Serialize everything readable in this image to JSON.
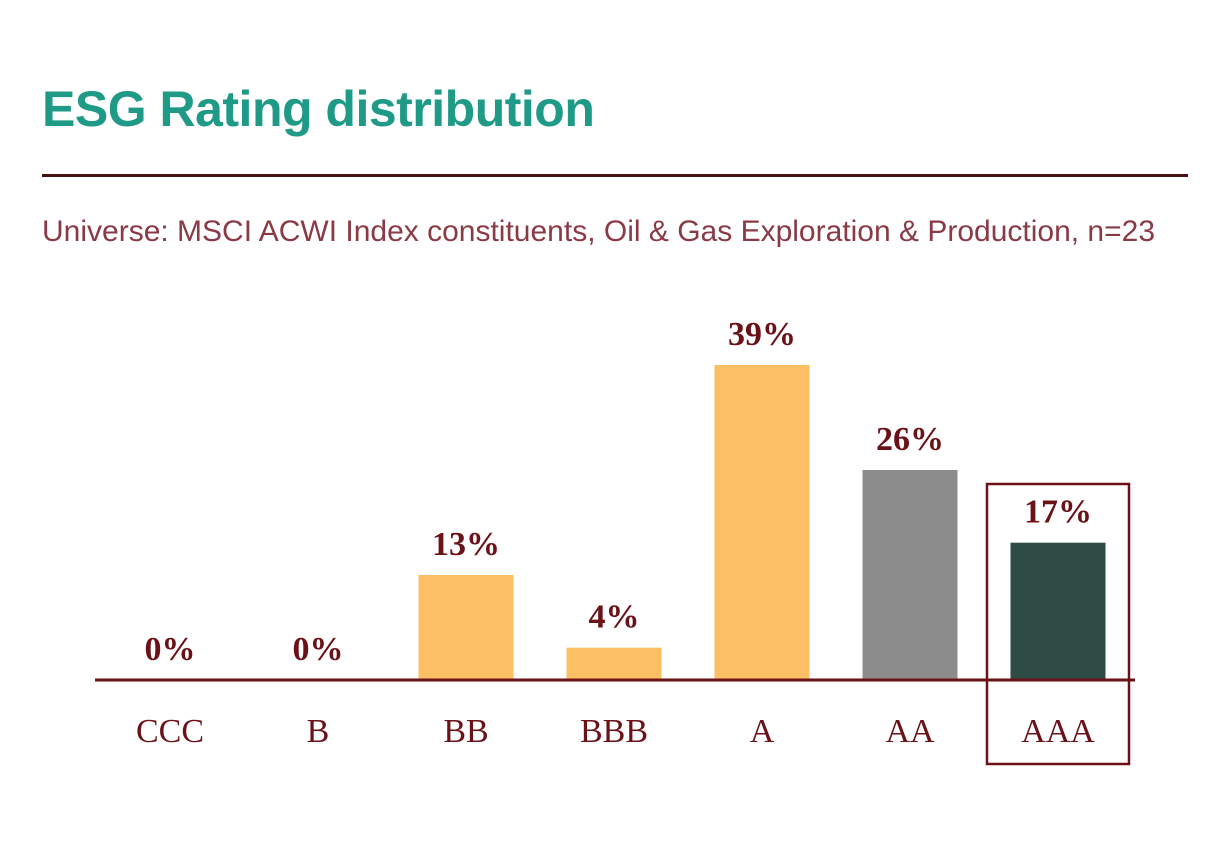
{
  "header": {
    "title": "ESG Rating distribution",
    "subtitle": "Universe: MSCI ACWI Index constituents, Oil & Gas Exploration & Production, n=23"
  },
  "chart_data": {
    "type": "bar",
    "title": "ESG Rating distribution",
    "categories": [
      "CCC",
      "B",
      "BB",
      "BBB",
      "A",
      "AA",
      "AAA"
    ],
    "values": [
      0,
      0,
      13,
      4,
      39,
      26,
      17
    ],
    "value_labels": [
      "0%",
      "0%",
      "13%",
      "4%",
      "39%",
      "26%",
      "17%"
    ],
    "colors": [
      "#fcbf63",
      "#fcbf63",
      "#fcbf63",
      "#fcbf63",
      "#fcbf63",
      "#8c8c8c",
      "#2f4b45"
    ],
    "highlighted_category": "AAA",
    "xlabel": "",
    "ylabel": "",
    "ylim": [
      0,
      39
    ],
    "grid": false,
    "legend": "none"
  }
}
